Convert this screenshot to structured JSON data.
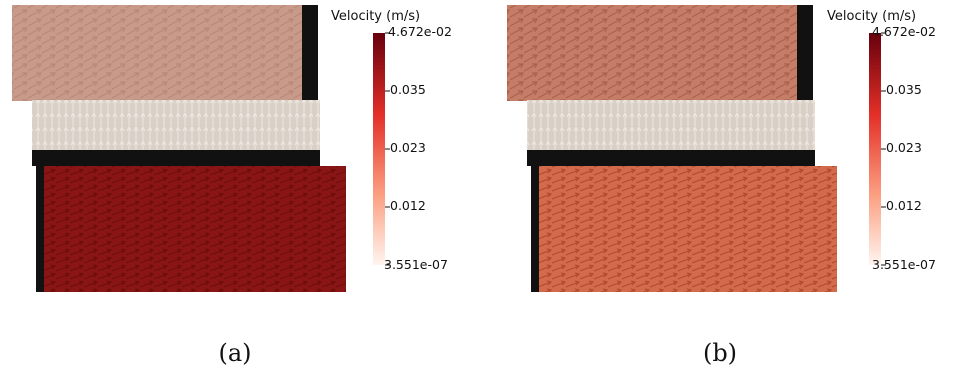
{
  "figure": {
    "panels": [
      {
        "id": "a",
        "label": "(a)",
        "colorbar": {
          "title": "Velocity (m/s)",
          "ticks": [
            "4.672e-02",
            "0.035",
            "0.023",
            "0.012",
            "3.551e-07"
          ],
          "colors": [
            "#67000d",
            "#e32f27",
            "#fca082",
            "#fff5f0"
          ]
        },
        "upper_block_color": "#c89a8a",
        "middle_band_color": "#d9d1c8",
        "lower_block_color": "#8a1515"
      },
      {
        "id": "b",
        "label": "(b)",
        "colorbar": {
          "title": "Velocity (m/s)",
          "ticks": [
            "4.672e-02",
            "0.035",
            "0.023",
            "0.012",
            "3.551e-07"
          ],
          "colors": [
            "#67000d",
            "#e32f27",
            "#fca082",
            "#fff5f0"
          ]
        },
        "upper_block_color": "#c57d67",
        "middle_band_color": "#d8cfc6",
        "lower_block_color": "#d36a4c"
      }
    ]
  }
}
